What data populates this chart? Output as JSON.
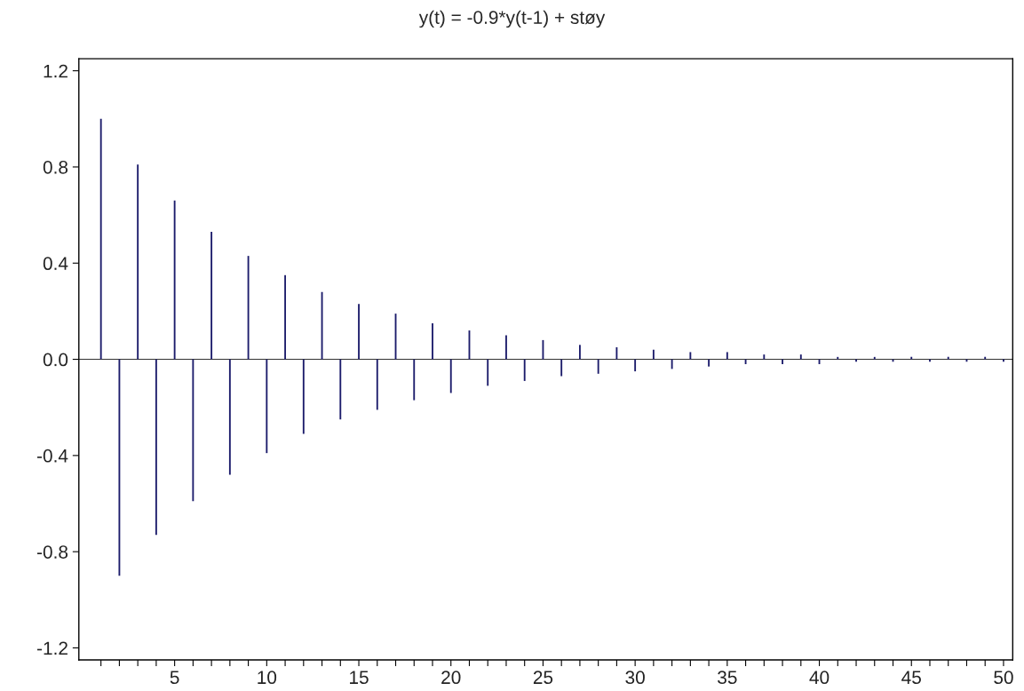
{
  "chart_data": {
    "type": "bar",
    "title": "y(t) = -0.9*y(t-1) + støy",
    "x": [
      1,
      2,
      3,
      4,
      5,
      6,
      7,
      8,
      9,
      10,
      11,
      12,
      13,
      14,
      15,
      16,
      17,
      18,
      19,
      20,
      21,
      22,
      23,
      24,
      25,
      26,
      27,
      28,
      29,
      30,
      31,
      32,
      33,
      34,
      35,
      36,
      37,
      38,
      39,
      40,
      41,
      42,
      43,
      44,
      45,
      46,
      47,
      48,
      49,
      50
    ],
    "values": [
      1.0,
      -0.9,
      0.81,
      -0.73,
      0.66,
      -0.59,
      0.53,
      -0.48,
      0.43,
      -0.39,
      0.35,
      -0.31,
      0.28,
      -0.25,
      0.23,
      -0.21,
      0.19,
      -0.17,
      0.15,
      -0.14,
      0.12,
      -0.11,
      0.1,
      -0.09,
      0.08,
      -0.07,
      0.06,
      -0.06,
      0.05,
      -0.05,
      0.04,
      -0.04,
      0.03,
      -0.03,
      0.03,
      -0.02,
      0.02,
      -0.02,
      0.02,
      -0.02,
      0.01,
      -0.01,
      0.01,
      -0.01,
      0.01,
      -0.01,
      0.01,
      -0.01,
      0.01,
      -0.01
    ],
    "color": "#1c1c6b",
    "xlim": [
      -0.2,
      50.5
    ],
    "xticks": [
      {
        "value": 1,
        "label": null
      },
      {
        "value": 2,
        "label": null
      },
      {
        "value": 3,
        "label": null
      },
      {
        "value": 4,
        "label": null
      },
      5,
      {
        "value": 6,
        "label": null
      },
      {
        "value": 7,
        "label": null
      },
      {
        "value": 8,
        "label": null
      },
      {
        "value": 9,
        "label": null
      },
      10,
      {
        "value": 11,
        "label": null
      },
      {
        "value": 12,
        "label": null
      },
      {
        "value": 13,
        "label": null
      },
      {
        "value": 14,
        "label": null
      },
      15,
      {
        "value": 16,
        "label": null
      },
      {
        "value": 17,
        "label": null
      },
      {
        "value": 18,
        "label": null
      },
      {
        "value": 19,
        "label": null
      },
      20,
      {
        "value": 21,
        "label": null
      },
      {
        "value": 22,
        "label": null
      },
      {
        "value": 23,
        "label": null
      },
      {
        "value": 24,
        "label": null
      },
      25,
      {
        "value": 26,
        "label": null
      },
      {
        "value": 27,
        "label": null
      },
      {
        "value": 28,
        "label": null
      },
      {
        "value": 29,
        "label": null
      },
      30,
      {
        "value": 31,
        "label": null
      },
      {
        "value": 32,
        "label": null
      },
      {
        "value": 33,
        "label": null
      },
      {
        "value": 34,
        "label": null
      },
      35,
      {
        "value": 36,
        "label": null
      },
      {
        "value": 37,
        "label": null
      },
      {
        "value": 38,
        "label": null
      },
      {
        "value": 39,
        "label": null
      },
      40,
      {
        "value": 41,
        "label": null
      },
      {
        "value": 42,
        "label": null
      },
      {
        "value": 43,
        "label": null
      },
      {
        "value": 44,
        "label": null
      },
      45,
      {
        "value": 46,
        "label": null
      },
      {
        "value": 47,
        "label": null
      },
      {
        "value": 48,
        "label": null
      },
      {
        "value": 49,
        "label": null
      },
      50
    ],
    "ylim": [
      -1.25,
      1.25
    ],
    "yticks": [
      {
        "value": -1.2,
        "label": "-1.2"
      },
      {
        "value": -0.8,
        "label": "-0.8"
      },
      {
        "value": -0.4,
        "label": "-0.4"
      },
      {
        "value": 0,
        "label": "0.0"
      },
      {
        "value": 0.4,
        "label": "0.4"
      },
      {
        "value": 0.8,
        "label": "0.8"
      },
      {
        "value": 1.2,
        "label": "1.2"
      }
    ],
    "ref_lines": [
      {
        "axis": "y",
        "value": 0,
        "color": "#000000"
      }
    ],
    "grid": false,
    "legend": false
  }
}
